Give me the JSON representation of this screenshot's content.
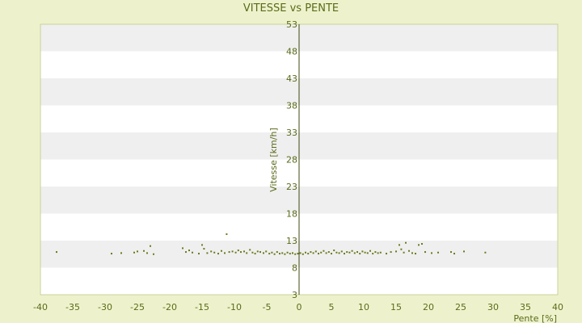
{
  "chart_data": {
    "type": "scatter",
    "title": "VITESSE vs PENTE",
    "xlabel": "Pente [%]",
    "ylabel": "Vitesse [km/h]",
    "xlim": [
      -40,
      40
    ],
    "ylim": [
      3,
      53
    ],
    "xticks": [
      -40,
      -35,
      -30,
      -25,
      -20,
      -15,
      -10,
      -5,
      0,
      5,
      10,
      15,
      20,
      25,
      30,
      35,
      40
    ],
    "yticks": [
      3,
      8,
      13,
      18,
      23,
      28,
      33,
      38,
      43,
      48,
      53
    ],
    "grid": "horizontal bands",
    "legend": "none",
    "colors": {
      "background": "#eef2cc",
      "plot_band_light": "#ffffff",
      "plot_band_dark": "#efefef",
      "point": "#6b7a1c",
      "text": "#5a6b1a",
      "axis": "#3f4a10"
    },
    "series": [
      {
        "points": [
          [
            -37.5,
            10.9
          ],
          [
            -29.0,
            10.6
          ],
          [
            -27.5,
            10.7
          ],
          [
            -25.5,
            10.8
          ],
          [
            -25.0,
            11.0
          ],
          [
            -24.0,
            11.1
          ],
          [
            -23.5,
            10.7
          ],
          [
            -23.0,
            12.0
          ],
          [
            -22.5,
            10.5
          ],
          [
            -18.0,
            11.6
          ],
          [
            -17.5,
            10.9
          ],
          [
            -17.0,
            11.2
          ],
          [
            -16.5,
            10.8
          ],
          [
            -15.5,
            10.6
          ],
          [
            -15.0,
            12.2
          ],
          [
            -14.7,
            11.5
          ],
          [
            -14.2,
            10.7
          ],
          [
            -13.6,
            11.0
          ],
          [
            -13.1,
            10.8
          ],
          [
            -12.5,
            10.6
          ],
          [
            -12.0,
            11.1
          ],
          [
            -11.5,
            10.7
          ],
          [
            -11.2,
            14.2
          ],
          [
            -10.8,
            10.9
          ],
          [
            -10.3,
            11.0
          ],
          [
            -9.8,
            10.8
          ],
          [
            -9.4,
            11.2
          ],
          [
            -9.0,
            10.9
          ],
          [
            -8.5,
            11.0
          ],
          [
            -8.1,
            10.7
          ],
          [
            -7.6,
            11.3
          ],
          [
            -7.2,
            10.8
          ],
          [
            -6.8,
            10.6
          ],
          [
            -6.4,
            11.0
          ],
          [
            -6.0,
            10.9
          ],
          [
            -5.5,
            10.7
          ],
          [
            -5.1,
            11.0
          ],
          [
            -4.6,
            10.6
          ],
          [
            -4.2,
            10.8
          ],
          [
            -3.8,
            10.5
          ],
          [
            -3.4,
            10.9
          ],
          [
            -3.0,
            10.6
          ],
          [
            -2.6,
            10.7
          ],
          [
            -2.2,
            10.5
          ],
          [
            -1.8,
            10.8
          ],
          [
            -1.4,
            10.6
          ],
          [
            -1.0,
            10.7
          ],
          [
            -0.6,
            10.5
          ],
          [
            -0.2,
            10.6
          ],
          [
            0.2,
            10.7
          ],
          [
            0.6,
            10.5
          ],
          [
            1.0,
            10.8
          ],
          [
            1.4,
            10.6
          ],
          [
            1.8,
            10.9
          ],
          [
            2.2,
            10.7
          ],
          [
            2.6,
            11.0
          ],
          [
            3.0,
            10.6
          ],
          [
            3.4,
            10.8
          ],
          [
            3.8,
            11.1
          ],
          [
            4.2,
            10.7
          ],
          [
            4.6,
            10.9
          ],
          [
            5.0,
            10.6
          ],
          [
            5.4,
            11.2
          ],
          [
            5.8,
            10.8
          ],
          [
            6.2,
            10.7
          ],
          [
            6.6,
            11.0
          ],
          [
            7.0,
            10.6
          ],
          [
            7.4,
            10.9
          ],
          [
            7.8,
            10.8
          ],
          [
            8.2,
            11.1
          ],
          [
            8.6,
            10.7
          ],
          [
            9.0,
            10.9
          ],
          [
            9.4,
            10.6
          ],
          [
            9.8,
            11.0
          ],
          [
            10.2,
            10.8
          ],
          [
            10.6,
            10.7
          ],
          [
            11.0,
            11.1
          ],
          [
            11.4,
            10.6
          ],
          [
            11.8,
            10.9
          ],
          [
            12.2,
            10.7
          ],
          [
            12.6,
            10.8
          ],
          [
            13.5,
            10.6
          ],
          [
            14.2,
            10.9
          ],
          [
            15.0,
            11.0
          ],
          [
            15.5,
            12.2
          ],
          [
            15.8,
            11.4
          ],
          [
            16.2,
            10.8
          ],
          [
            16.5,
            12.6
          ],
          [
            17.0,
            11.1
          ],
          [
            17.5,
            10.7
          ],
          [
            18.0,
            10.6
          ],
          [
            18.5,
            12.2
          ],
          [
            19.0,
            12.4
          ],
          [
            19.5,
            10.9
          ],
          [
            20.5,
            10.7
          ],
          [
            21.5,
            10.8
          ],
          [
            23.5,
            10.9
          ],
          [
            24.0,
            10.6
          ],
          [
            25.5,
            11.0
          ],
          [
            28.8,
            10.8
          ]
        ]
      }
    ]
  }
}
